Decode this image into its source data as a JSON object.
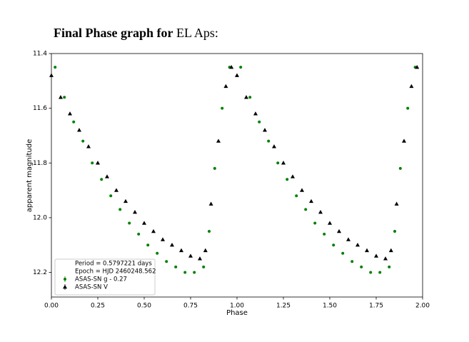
{
  "chart_data": {
    "type": "scatter",
    "title": {
      "bold": "Final Phase graph for",
      "normal": "EL Aps:"
    },
    "x_label": "Phase",
    "y_label": "apparent magnitude",
    "xlim": [
      0,
      2
    ],
    "ylim": [
      12.29,
      11.4
    ],
    "y_inverted": true,
    "xticks": [
      {
        "value": 0,
        "label": "0.00"
      },
      {
        "value": 0.25,
        "label": "0.25"
      },
      {
        "value": 0.5,
        "label": "0.50"
      },
      {
        "value": 0.75,
        "label": "0.75"
      },
      {
        "value": 1,
        "label": "1.00"
      },
      {
        "value": 1.25,
        "label": "1.25"
      },
      {
        "value": 1.5,
        "label": "1.50"
      },
      {
        "value": 1.75,
        "label": "1.75"
      },
      {
        "value": 2,
        "label": "2.00"
      }
    ],
    "yticks": [
      11.4,
      11.6,
      11.8,
      {
        "value": 12,
        "label": "12.0"
      },
      12.2
    ],
    "legend_notes": [
      "Period = 0.5797221 days",
      "Epoch = HJD 2460248.562"
    ],
    "legend_position": "lower left",
    "series": [
      {
        "name": "ASAS-SN g - 0.27",
        "color": "#008000",
        "marker": "circle",
        "x": [
          0.02,
          0.07,
          0.12,
          0.17,
          0.22,
          0.27,
          0.32,
          0.37,
          0.42,
          0.47,
          0.52,
          0.57,
          0.62,
          0.67,
          0.72,
          0.77,
          0.82,
          0.85,
          0.88,
          0.92,
          0.96,
          1.02,
          1.07,
          1.12,
          1.17,
          1.22,
          1.27,
          1.32,
          1.37,
          1.42,
          1.47,
          1.52,
          1.57,
          1.62,
          1.67,
          1.72,
          1.77,
          1.82,
          1.85,
          1.88,
          1.92,
          1.96
        ],
        "values": [
          11.45,
          11.56,
          11.65,
          11.72,
          11.8,
          11.86,
          11.92,
          11.97,
          12.02,
          12.06,
          12.1,
          12.13,
          12.16,
          12.18,
          12.2,
          12.2,
          12.18,
          12.05,
          11.82,
          11.6,
          11.45,
          11.45,
          11.56,
          11.65,
          11.72,
          11.8,
          11.86,
          11.92,
          11.97,
          12.02,
          12.06,
          12.1,
          12.13,
          12.16,
          12.18,
          12.2,
          12.2,
          12.18,
          12.05,
          11.82,
          11.6,
          11.45
        ]
      },
      {
        "name": "ASAS-SN V",
        "color": "#000000",
        "marker": "triangle",
        "x": [
          0,
          0.05,
          0.1,
          0.15,
          0.2,
          0.25,
          0.3,
          0.35,
          0.4,
          0.45,
          0.5,
          0.55,
          0.6,
          0.65,
          0.7,
          0.75,
          0.8,
          0.83,
          0.86,
          0.9,
          0.94,
          0.97,
          1,
          1.05,
          1.1,
          1.15,
          1.2,
          1.25,
          1.3,
          1.35,
          1.4,
          1.45,
          1.5,
          1.55,
          1.6,
          1.65,
          1.7,
          1.75,
          1.8,
          1.83,
          1.86,
          1.9,
          1.94,
          1.97
        ],
        "values": [
          11.48,
          11.56,
          11.62,
          11.68,
          11.74,
          11.8,
          11.85,
          11.9,
          11.94,
          11.98,
          12.02,
          12.05,
          12.08,
          12.1,
          12.12,
          12.14,
          12.15,
          12.12,
          11.95,
          11.72,
          11.52,
          11.45,
          11.48,
          11.56,
          11.62,
          11.68,
          11.74,
          11.8,
          11.85,
          11.9,
          11.94,
          11.98,
          12.02,
          12.05,
          12.08,
          12.1,
          12.12,
          12.14,
          12.15,
          12.12,
          11.95,
          11.72,
          11.52,
          11.45
        ]
      }
    ]
  }
}
